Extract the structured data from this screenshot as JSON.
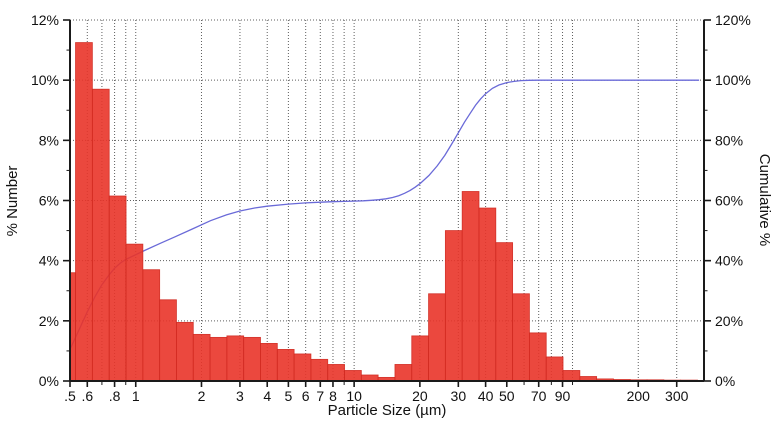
{
  "chart_data": {
    "type": "bar",
    "subtype": "log-histogram with cumulative line overlay",
    "title": "",
    "xlabel": "Particle Size (µm)",
    "ylabel_left": "% Number",
    "ylabel_right": "Cumulative %",
    "x_scale": "log",
    "x_range": [
      0.5,
      400
    ],
    "y_left": {
      "min": 0,
      "max": 12,
      "tick_step": 2,
      "tick_labels": [
        "0%",
        "2%",
        "4%",
        "6%",
        "8%",
        "10%",
        "12%"
      ]
    },
    "y_right": {
      "min": 0,
      "max": 120,
      "tick_step": 20,
      "tick_labels": [
        "0%",
        "20%",
        "40%",
        "60%",
        "80%",
        "100%",
        "120%"
      ]
    },
    "x_ticks": [
      {
        "v": 0.5,
        "label": ".5"
      },
      {
        "v": 0.6,
        "label": ".6"
      },
      {
        "v": 0.8,
        "label": ".8"
      },
      {
        "v": 1,
        "label": "1"
      },
      {
        "v": 2,
        "label": "2"
      },
      {
        "v": 3,
        "label": "3"
      },
      {
        "v": 4,
        "label": "4"
      },
      {
        "v": 5,
        "label": "5"
      },
      {
        "v": 6,
        "label": "6"
      },
      {
        "v": 7,
        "label": "7"
      },
      {
        "v": 8,
        "label": "8"
      },
      {
        "v": 10,
        "label": "10"
      },
      {
        "v": 20,
        "label": "20"
      },
      {
        "v": 30,
        "label": "30"
      },
      {
        "v": 40,
        "label": "40"
      },
      {
        "v": 50,
        "label": "50"
      },
      {
        "v": 70,
        "label": "70"
      },
      {
        "v": 90,
        "label": "90"
      },
      {
        "v": 200,
        "label": "200"
      },
      {
        "v": 300,
        "label": "300"
      }
    ],
    "x_gridlines": [
      0.5,
      0.6,
      0.7,
      0.8,
      0.9,
      1,
      2,
      3,
      4,
      5,
      6,
      7,
      8,
      9,
      10,
      20,
      30,
      40,
      50,
      60,
      70,
      80,
      90,
      100,
      200,
      300
    ],
    "y_gridlines": [
      2,
      4,
      6,
      8,
      10,
      12
    ],
    "grid": "dotted",
    "legend": "none",
    "bars_pct_number": [
      [
        0.5,
        0.53,
        3.6
      ],
      [
        0.53,
        0.633,
        11.25
      ],
      [
        0.633,
        0.756,
        9.7
      ],
      [
        0.756,
        0.903,
        6.15
      ],
      [
        0.903,
        1.078,
        4.55
      ],
      [
        1.078,
        1.287,
        3.7
      ],
      [
        1.287,
        1.536,
        2.7
      ],
      [
        1.536,
        1.834,
        1.95
      ],
      [
        1.834,
        2.19,
        1.55
      ],
      [
        2.19,
        2.614,
        1.45
      ],
      [
        2.614,
        3.121,
        1.5
      ],
      [
        3.121,
        3.726,
        1.45
      ],
      [
        3.726,
        4.449,
        1.25
      ],
      [
        4.449,
        5.311,
        1.05
      ],
      [
        5.311,
        6.341,
        0.9
      ],
      [
        6.341,
        7.57,
        0.72
      ],
      [
        7.57,
        9.037,
        0.55
      ],
      [
        9.037,
        10.789,
        0.35
      ],
      [
        10.789,
        12.881,
        0.2
      ],
      [
        12.881,
        15.378,
        0.12
      ],
      [
        15.378,
        18.36,
        0.55
      ],
      [
        18.36,
        21.92,
        1.5
      ],
      [
        21.92,
        26.17,
        2.9
      ],
      [
        26.17,
        31.244,
        5.0
      ],
      [
        31.244,
        37.302,
        6.3
      ],
      [
        37.302,
        44.535,
        5.75
      ],
      [
        44.535,
        53.17,
        4.6
      ],
      [
        53.17,
        63.48,
        2.9
      ],
      [
        63.48,
        75.789,
        1.6
      ],
      [
        75.789,
        90.484,
        0.8
      ],
      [
        90.484,
        108.03,
        0.35
      ],
      [
        108.03,
        128.97,
        0.15
      ],
      [
        128.97,
        153.98,
        0.07
      ],
      [
        153.98,
        183.84,
        0.05
      ],
      [
        183.84,
        219.48,
        0.04
      ],
      [
        219.48,
        262.04,
        0.04
      ],
      [
        262.04,
        312.85,
        0.03
      ],
      [
        312.85,
        373.51,
        0.03
      ],
      [
        373.51,
        400,
        0.02
      ]
    ],
    "cumulative_pct": [
      [
        0.5,
        10.5
      ],
      [
        0.55,
        17
      ],
      [
        0.6,
        23
      ],
      [
        0.65,
        28
      ],
      [
        0.7,
        32
      ],
      [
        0.75,
        35
      ],
      [
        0.8,
        37.5
      ],
      [
        0.85,
        39.2
      ],
      [
        0.9,
        40.4
      ],
      [
        1.0,
        42
      ],
      [
        1.1,
        43.4
      ],
      [
        1.3,
        45.8
      ],
      [
        1.5,
        47.8
      ],
      [
        1.8,
        50.4
      ],
      [
        2.2,
        53.3
      ],
      [
        2.6,
        55.2
      ],
      [
        3.0,
        56.5
      ],
      [
        3.5,
        57.5
      ],
      [
        4.0,
        58.1
      ],
      [
        5.0,
        58.8
      ],
      [
        6.0,
        59.2
      ],
      [
        7.0,
        59.45
      ],
      [
        8.0,
        59.6
      ],
      [
        9.0,
        59.7
      ],
      [
        10,
        59.8
      ],
      [
        11,
        59.9
      ],
      [
        12,
        60.05
      ],
      [
        13,
        60.25
      ],
      [
        14,
        60.55
      ],
      [
        15,
        61
      ],
      [
        16,
        61.6
      ],
      [
        17,
        62.4
      ],
      [
        18,
        63.3
      ],
      [
        19,
        64.4
      ],
      [
        20,
        65.6
      ],
      [
        22,
        68.3
      ],
      [
        24,
        71.5
      ],
      [
        26,
        75
      ],
      [
        28,
        78.8
      ],
      [
        30,
        82.5
      ],
      [
        32,
        86
      ],
      [
        34,
        89
      ],
      [
        36,
        91.7
      ],
      [
        38,
        93.8
      ],
      [
        40,
        95.5
      ],
      [
        43,
        97.3
      ],
      [
        46,
        98.4
      ],
      [
        50,
        99.2
      ],
      [
        54,
        99.6
      ],
      [
        58,
        99.85
      ],
      [
        63,
        99.95
      ],
      [
        70,
        100
      ],
      [
        90,
        100
      ],
      [
        150,
        100
      ],
      [
        250,
        100
      ],
      [
        380,
        100
      ]
    ]
  },
  "colors": {
    "background": "#ffffff",
    "bar_fill": "#e93429",
    "bar_edge": "#cf2920",
    "curve": "#6a6ad8",
    "grid": "#5f5f5f",
    "axis": "#1a1a1a",
    "text": "#111111"
  }
}
